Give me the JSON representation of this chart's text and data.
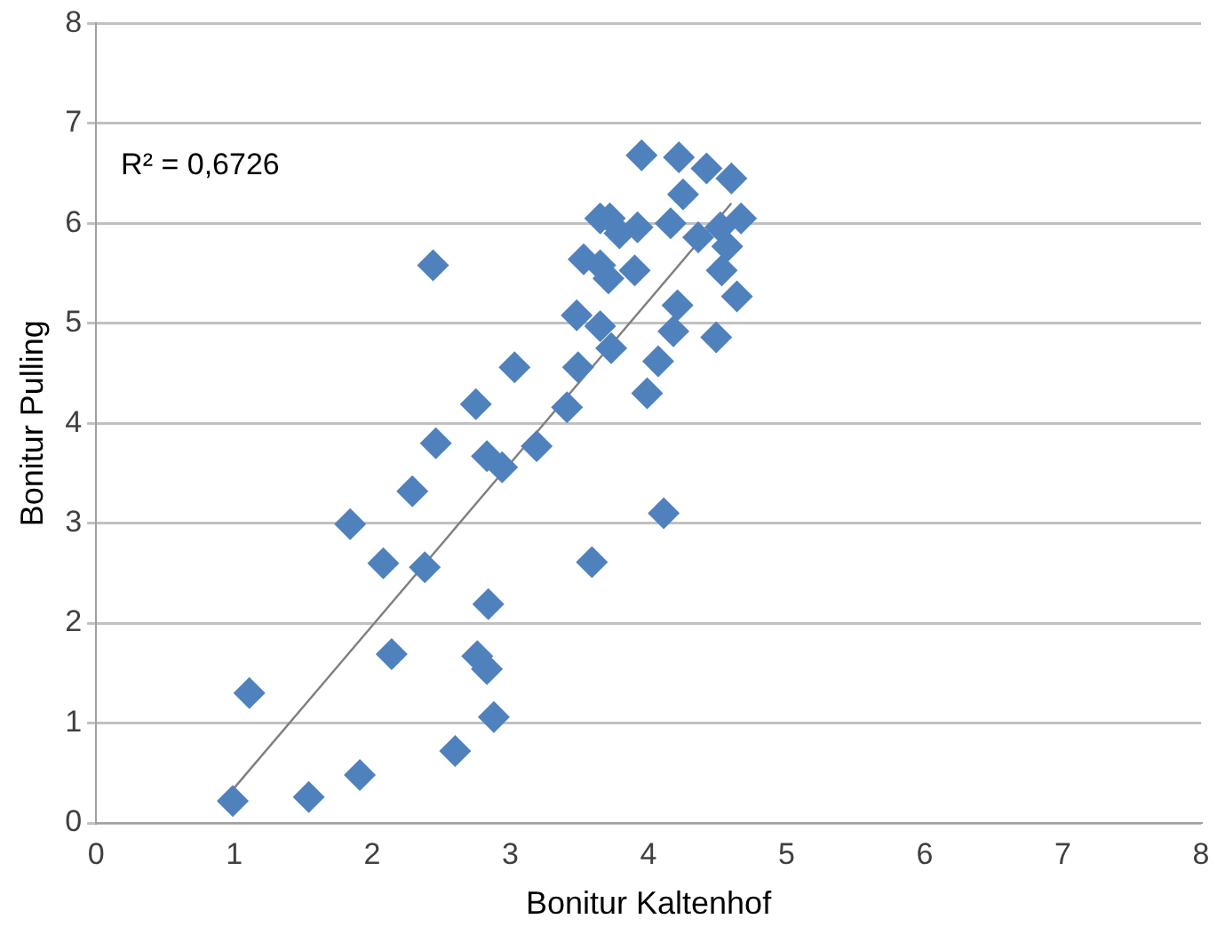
{
  "chart_data": {
    "type": "scatter",
    "xlabel": "Bonitur Kaltenhof",
    "ylabel": "Bonitur Pulling",
    "xlim": [
      0,
      8
    ],
    "ylim": [
      0,
      8
    ],
    "xticks": [
      0,
      1,
      2,
      3,
      4,
      5,
      6,
      7,
      8
    ],
    "yticks": [
      0,
      1,
      2,
      3,
      4,
      5,
      6,
      7,
      8
    ],
    "grid": "y",
    "marker": "diamond",
    "annotations": [
      "R² = 0,6726"
    ],
    "series": [
      {
        "color": "#4f81bd",
        "x": [
          0.99,
          1.11,
          1.54,
          1.91,
          1.84,
          2.08,
          2.14,
          2.29,
          2.38,
          2.44,
          2.46,
          2.6,
          2.75,
          2.76,
          2.84,
          2.83,
          2.83,
          2.88,
          2.94,
          3.03,
          3.19,
          3.41,
          3.49,
          3.48,
          3.59,
          3.65,
          3.65,
          3.65,
          3.73,
          3.79,
          3.71,
          3.9,
          3.95,
          3.92,
          3.99,
          4.07,
          4.11,
          4.18,
          4.21,
          4.25,
          4.22,
          4.36,
          4.42,
          4.49,
          4.52,
          4.6,
          4.64,
          4.53,
          4.67,
          4.57,
          4.16,
          3.72,
          3.53
        ],
        "values": [
          0.22,
          1.3,
          0.26,
          0.48,
          2.99,
          2.6,
          1.69,
          3.32,
          2.56,
          5.58,
          3.8,
          0.72,
          4.19,
          1.67,
          2.19,
          3.67,
          1.54,
          1.06,
          3.56,
          4.56,
          3.77,
          4.16,
          4.56,
          5.08,
          2.61,
          4.97,
          5.58,
          6.05,
          4.75,
          5.9,
          5.45,
          5.53,
          6.68,
          5.96,
          4.3,
          4.62,
          3.1,
          4.92,
          5.18,
          6.29,
          6.66,
          5.86,
          6.55,
          4.86,
          5.96,
          6.45,
          5.27,
          5.53,
          6.05,
          5.77,
          6.0,
          6.05,
          5.64
        ]
      },
      {
        "type": "line",
        "color": "#7f7f7f",
        "marker": "none",
        "x": [
          1,
          4.6
        ],
        "values": [
          0.35,
          6.2
        ]
      }
    ]
  }
}
